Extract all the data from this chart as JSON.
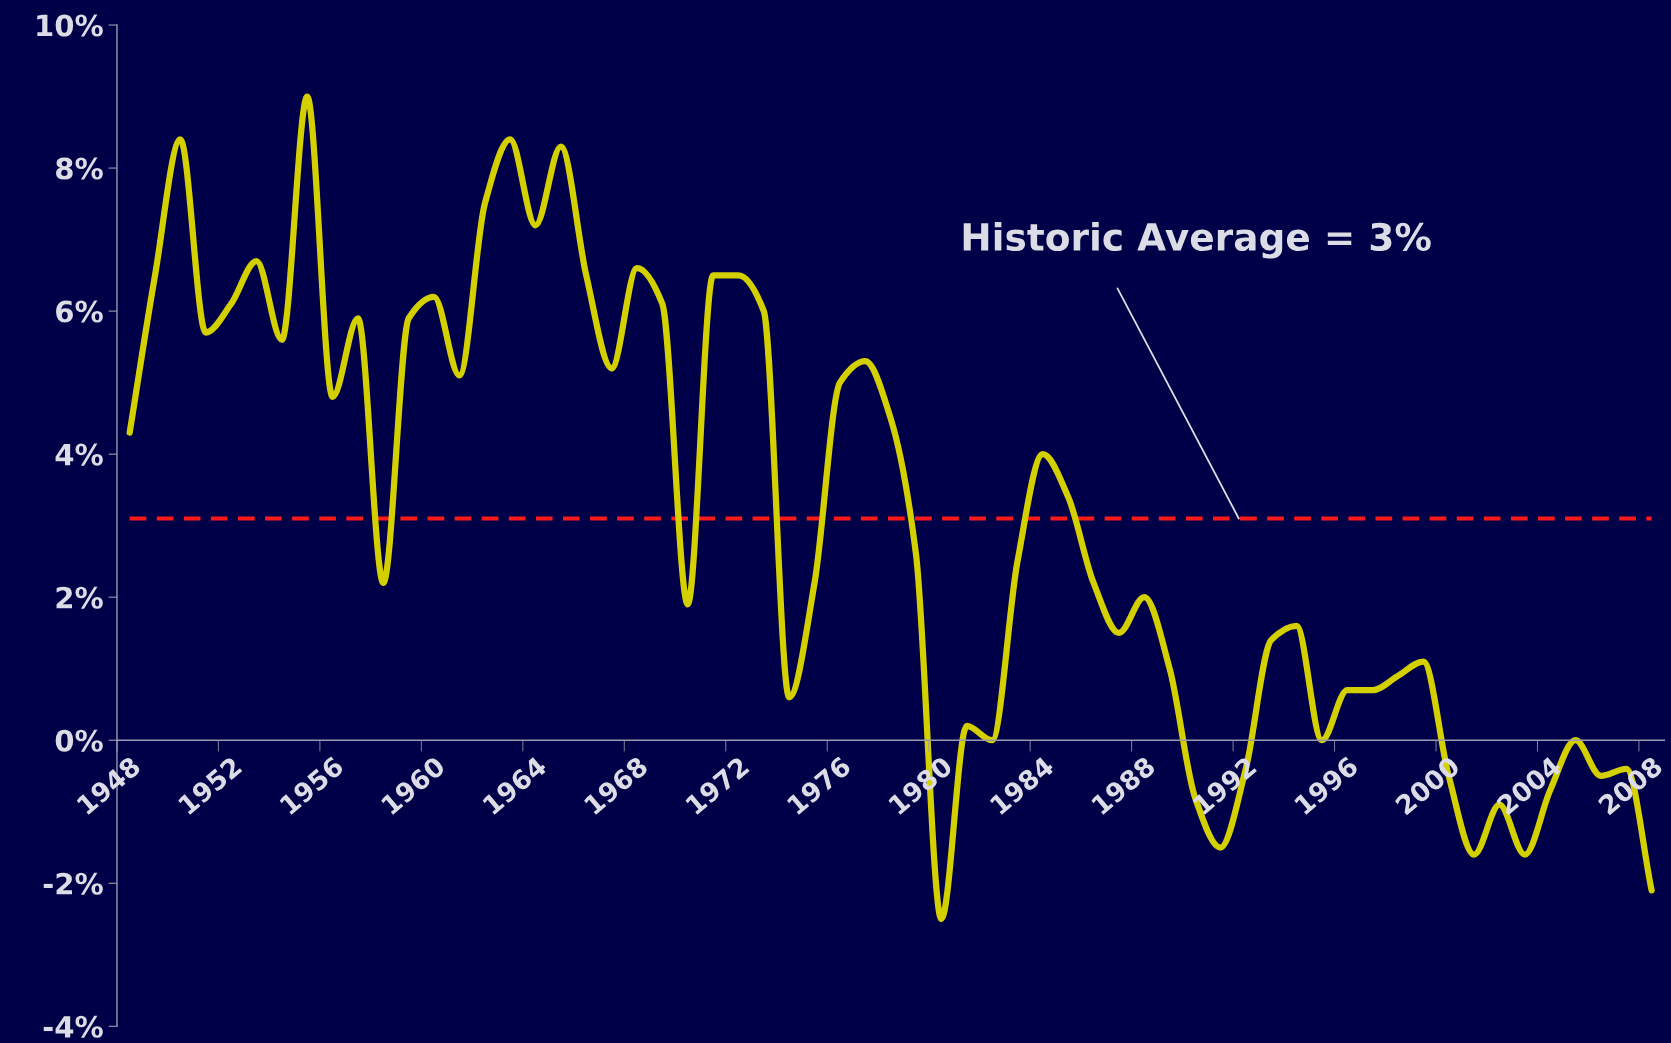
{
  "chart_data": {
    "type": "line",
    "categories": [
      "1948",
      null,
      null,
      null,
      "1952",
      null,
      null,
      null,
      "1956",
      null,
      null,
      null,
      "1960",
      null,
      null,
      null,
      "1964",
      null,
      null,
      null,
      "1968",
      null,
      null,
      null,
      "1972",
      null,
      null,
      null,
      "1976",
      null,
      null,
      null,
      "1980",
      null,
      null,
      null,
      "1984",
      null,
      null,
      null,
      "1988",
      null,
      null,
      null,
      "1992",
      null,
      null,
      null,
      "1996",
      null,
      null,
      null,
      "2000",
      null,
      null,
      null,
      "2004",
      null,
      null,
      null,
      "2008"
    ],
    "series": [
      {
        "color": "#d4d000",
        "values": [
          4.3,
          6.5,
          8.4,
          5.7,
          6.1,
          6.7,
          5.6,
          9.0,
          4.8,
          5.9,
          2.2,
          5.9,
          6.2,
          5.1,
          7.5,
          8.4,
          7.2,
          8.3,
          6.5,
          5.2,
          6.6,
          6.1,
          1.9,
          6.5,
          6.5,
          6.0,
          0.6,
          2.2,
          5.0,
          5.3,
          4.5,
          2.6,
          -2.5,
          0.2,
          0.0,
          2.5,
          4.0,
          3.4,
          2.2,
          1.5,
          2.0,
          1.0,
          -0.8,
          -1.5,
          -0.4,
          1.4,
          1.6,
          0.0,
          0.7,
          0.7,
          0.9,
          1.1,
          -0.5,
          -1.6,
          -0.9,
          -1.6,
          -0.7,
          0.0,
          -0.5,
          -0.4,
          -2.1
        ]
      }
    ],
    "ylim": [
      -4,
      10
    ],
    "yticks": [
      {
        "value": -4,
        "label": "-4%"
      },
      {
        "value": -2,
        "label": "-2%"
      },
      {
        "value": 0,
        "label": "0%"
      },
      {
        "value": 2,
        "label": "2%"
      },
      {
        "value": 4,
        "label": "4%"
      },
      {
        "value": 6,
        "label": "6%"
      },
      {
        "value": 8,
        "label": "8%"
      },
      {
        "value": 10,
        "label": "10%"
      }
    ],
    "ref_lines": [
      {
        "axis": "y",
        "value": 3.1,
        "label": "Historic Average = 3%",
        "color": "#ff1a1a",
        "line_style": "dashed"
      }
    ],
    "grid": false,
    "legend": false,
    "marker": "none",
    "line_style": "solid"
  }
}
